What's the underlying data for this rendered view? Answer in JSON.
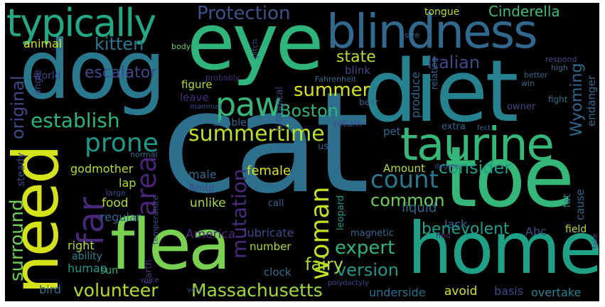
{
  "background": "#000000",
  "palette": [
    "#440154",
    "#482878",
    "#3e4989",
    "#31688e",
    "#26828e",
    "#1f9e89",
    "#35b779",
    "#6ece58",
    "#b5de2b",
    "#fde725"
  ],
  "words": [
    {
      "text": "cat",
      "color": "#2d708e"
    },
    {
      "text": "toe",
      "color": "#35b779"
    },
    {
      "text": "home",
      "color": "#1fa187"
    },
    {
      "text": "diet",
      "color": "#26828e"
    },
    {
      "text": "dog",
      "color": "#2a788e"
    },
    {
      "text": "eye",
      "color": "#2fb47c"
    },
    {
      "text": "flea",
      "color": "#7ad151"
    },
    {
      "text": "need",
      "color": "#d5e21a"
    },
    {
      "text": "blindness",
      "color": "#31688e"
    },
    {
      "text": "taurine",
      "color": "#35b779"
    },
    {
      "text": "typically",
      "color": "#22a884"
    },
    {
      "text": "far",
      "color": "#482878"
    },
    {
      "text": "paw",
      "color": "#35b779"
    },
    {
      "text": "woman",
      "color": "#c2df23"
    },
    {
      "text": "summertime",
      "color": "#bddf26"
    },
    {
      "text": "prone",
      "color": "#1f988b"
    },
    {
      "text": "count",
      "color": "#2a788e"
    },
    {
      "text": "Protection",
      "color": "#3b528b"
    },
    {
      "text": "Massachusetts",
      "color": "#a0da39"
    },
    {
      "text": "surround",
      "color": "#6ece58"
    },
    {
      "text": "volunteer",
      "color": "#b5de2b"
    },
    {
      "text": "establish",
      "color": "#2fb47c"
    },
    {
      "text": "mutation",
      "color": "#472c7a"
    },
    {
      "text": "Boston",
      "color": "#2fb47c"
    },
    {
      "text": "summer",
      "color": "#d8e219"
    },
    {
      "text": "area",
      "color": "#482475"
    },
    {
      "text": "expert",
      "color": "#2fb47c"
    },
    {
      "text": "version",
      "color": "#1f988b"
    },
    {
      "text": "benevolent",
      "color": "#1f9e89"
    },
    {
      "text": "common",
      "color": "#6ece58"
    },
    {
      "text": "consider",
      "color": "#1f9e89"
    },
    {
      "text": "kitten",
      "color": "#2a788e"
    },
    {
      "text": "escalator",
      "color": "#3e4989"
    },
    {
      "text": "italian",
      "color": "#3e4989"
    },
    {
      "text": "Cinderella",
      "color": "#3dbc74"
    },
    {
      "text": "state",
      "color": "#b5de2b"
    },
    {
      "text": "original",
      "color": "#3e4989"
    },
    {
      "text": "fairy",
      "color": "#addc30"
    },
    {
      "text": "Wyoming",
      "color": "#31688e"
    },
    {
      "text": "female",
      "color": "#d8e219"
    },
    {
      "text": "liquid",
      "color": "#31688e"
    },
    {
      "text": "Amount",
      "color": "#b5de2b"
    },
    {
      "text": "lack",
      "color": "#31688e"
    },
    {
      "text": "Abc",
      "color": "#3e4989"
    },
    {
      "text": "unlike",
      "color": "#addc30"
    },
    {
      "text": "food",
      "color": "#b5de2b"
    },
    {
      "text": "lap",
      "color": "#addc30"
    },
    {
      "text": "regular",
      "color": "#31688e"
    },
    {
      "text": "America",
      "color": "#482878"
    },
    {
      "text": "lubricate",
      "color": "#3e4989"
    },
    {
      "text": "right",
      "color": "#b5de2b"
    },
    {
      "text": "human",
      "color": "#1f988b"
    },
    {
      "text": "ability",
      "color": "#26828e"
    },
    {
      "text": "sun",
      "color": "#35b779"
    },
    {
      "text": "bird",
      "color": "#2d708e"
    },
    {
      "text": "underside",
      "color": "#2d708e"
    },
    {
      "text": "avoid",
      "color": "#d8e219"
    },
    {
      "text": "basis",
      "color": "#3e4989"
    },
    {
      "text": "overtake",
      "color": "#26828e"
    },
    {
      "text": "clock",
      "color": "#2d708e"
    },
    {
      "text": "number",
      "color": "#addc30"
    },
    {
      "text": "godmother",
      "color": "#b5de2b"
    },
    {
      "text": "male",
      "color": "#31688e"
    },
    {
      "text": "Amur",
      "color": "#3e4989"
    },
    {
      "text": "figure",
      "color": "#b5de2b"
    },
    {
      "text": "leave",
      "color": "#472c7a"
    },
    {
      "text": "tongue",
      "color": "#b5de2b"
    },
    {
      "text": "animal",
      "color": "#d8e219"
    },
    {
      "text": "world",
      "color": "#3e4989"
    },
    {
      "text": "blink",
      "color": "#3e4989"
    },
    {
      "text": "pet",
      "color": "#31688e"
    },
    {
      "text": "extra",
      "color": "#31688e"
    },
    {
      "text": "cause",
      "color": "#31688e"
    },
    {
      "text": "fat",
      "color": "#26828e"
    },
    {
      "text": "field",
      "color": "#addc30"
    },
    {
      "text": "produce",
      "color": "#31688e"
    },
    {
      "text": "endanger",
      "color": "#31688e"
    },
    {
      "text": "fight",
      "color": "#2d708e"
    },
    {
      "text": "owner",
      "color": "#3e4989"
    },
    {
      "text": "steady",
      "color": "#3e4989"
    },
    {
      "text": "normal",
      "color": "#31688e"
    },
    {
      "text": "unable",
      "color": "#31688e"
    },
    {
      "text": "biological",
      "color": "#3e4989"
    },
    {
      "text": "use",
      "color": "#31688e"
    },
    {
      "text": "leopard",
      "color": "#1f988b"
    },
    {
      "text": "magnetic",
      "color": "#31688e"
    },
    {
      "text": "call",
      "color": "#31688e"
    },
    {
      "text": "body",
      "color": "#6ece58"
    },
    {
      "text": "Earth",
      "color": "#472c7a"
    },
    {
      "text": "temperature",
      "color": "#3e4989"
    },
    {
      "text": "large",
      "color": "#3e4989"
    },
    {
      "text": "angle",
      "color": "#3e4989"
    },
    {
      "text": "mammal",
      "color": "#3e4989"
    },
    {
      "text": "Fahrenheit",
      "color": "#31688e"
    },
    {
      "text": "bear",
      "color": "#31688e"
    },
    {
      "text": "return",
      "color": "#3e4989"
    },
    {
      "text": "probably",
      "color": "#472c7a"
    },
    {
      "text": "pitch",
      "color": "#3e4989"
    },
    {
      "text": "size",
      "color": "#31688e"
    },
    {
      "text": "relation",
      "color": "#31688e"
    },
    {
      "text": "respond",
      "color": "#3e4989"
    },
    {
      "text": "high",
      "color": "#31688e"
    },
    {
      "text": "better",
      "color": "#31688e"
    },
    {
      "text": "win",
      "color": "#31688e"
    },
    {
      "text": "fect",
      "color": "#31688e"
    },
    {
      "text": "degree",
      "color": "#3e4989"
    },
    {
      "text": "find",
      "color": "#482878"
    },
    {
      "text": "take",
      "color": "#3e4989"
    },
    {
      "text": "voice",
      "color": "#3e4989"
    },
    {
      "text": "very",
      "color": "#3e4989"
    },
    {
      "text": "polydactyly",
      "color": "#3e4989"
    }
  ]
}
